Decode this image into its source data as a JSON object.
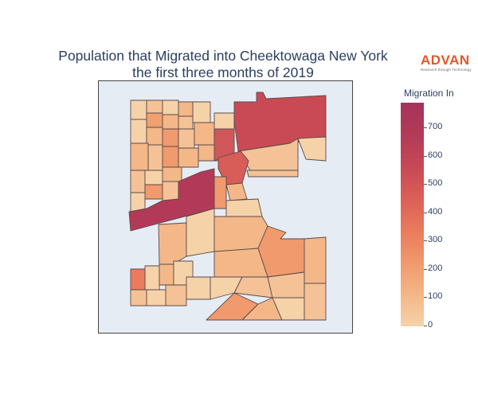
{
  "title_line1": "Population that Migrated into Cheektowaga New York",
  "title_line2": "the first three months of 2019",
  "logo": {
    "name": "ADVAN",
    "tagline": "Research through Technology"
  },
  "colorbar": {
    "title": "Migration In",
    "ticks": [
      "0",
      "100",
      "200",
      "300",
      "400",
      "500",
      "600",
      "700"
    ],
    "min": 0,
    "max": 790,
    "colorscale": [
      "#f6d2a9",
      "#f4b788",
      "#f09a6d",
      "#ea7c5d",
      "#dd6157",
      "#c94a55",
      "#b23a58",
      "#a6335c"
    ]
  },
  "chart_data": {
    "type": "choropleth",
    "title": "Population that Migrated into Cheektowaga New York the first three months of 2019",
    "colorbar_title": "Migration In",
    "value_range": [
      0,
      790
    ],
    "regions": [
      {
        "value": 700
      },
      {
        "value": 650
      },
      {
        "value": 760
      },
      {
        "value": 560
      },
      {
        "value": 300
      },
      {
        "value": 280
      },
      {
        "value": 250
      },
      {
        "value": 120
      },
      {
        "value": 180
      },
      {
        "value": 90
      },
      {
        "value": 140
      },
      {
        "value": 200
      }
    ]
  }
}
